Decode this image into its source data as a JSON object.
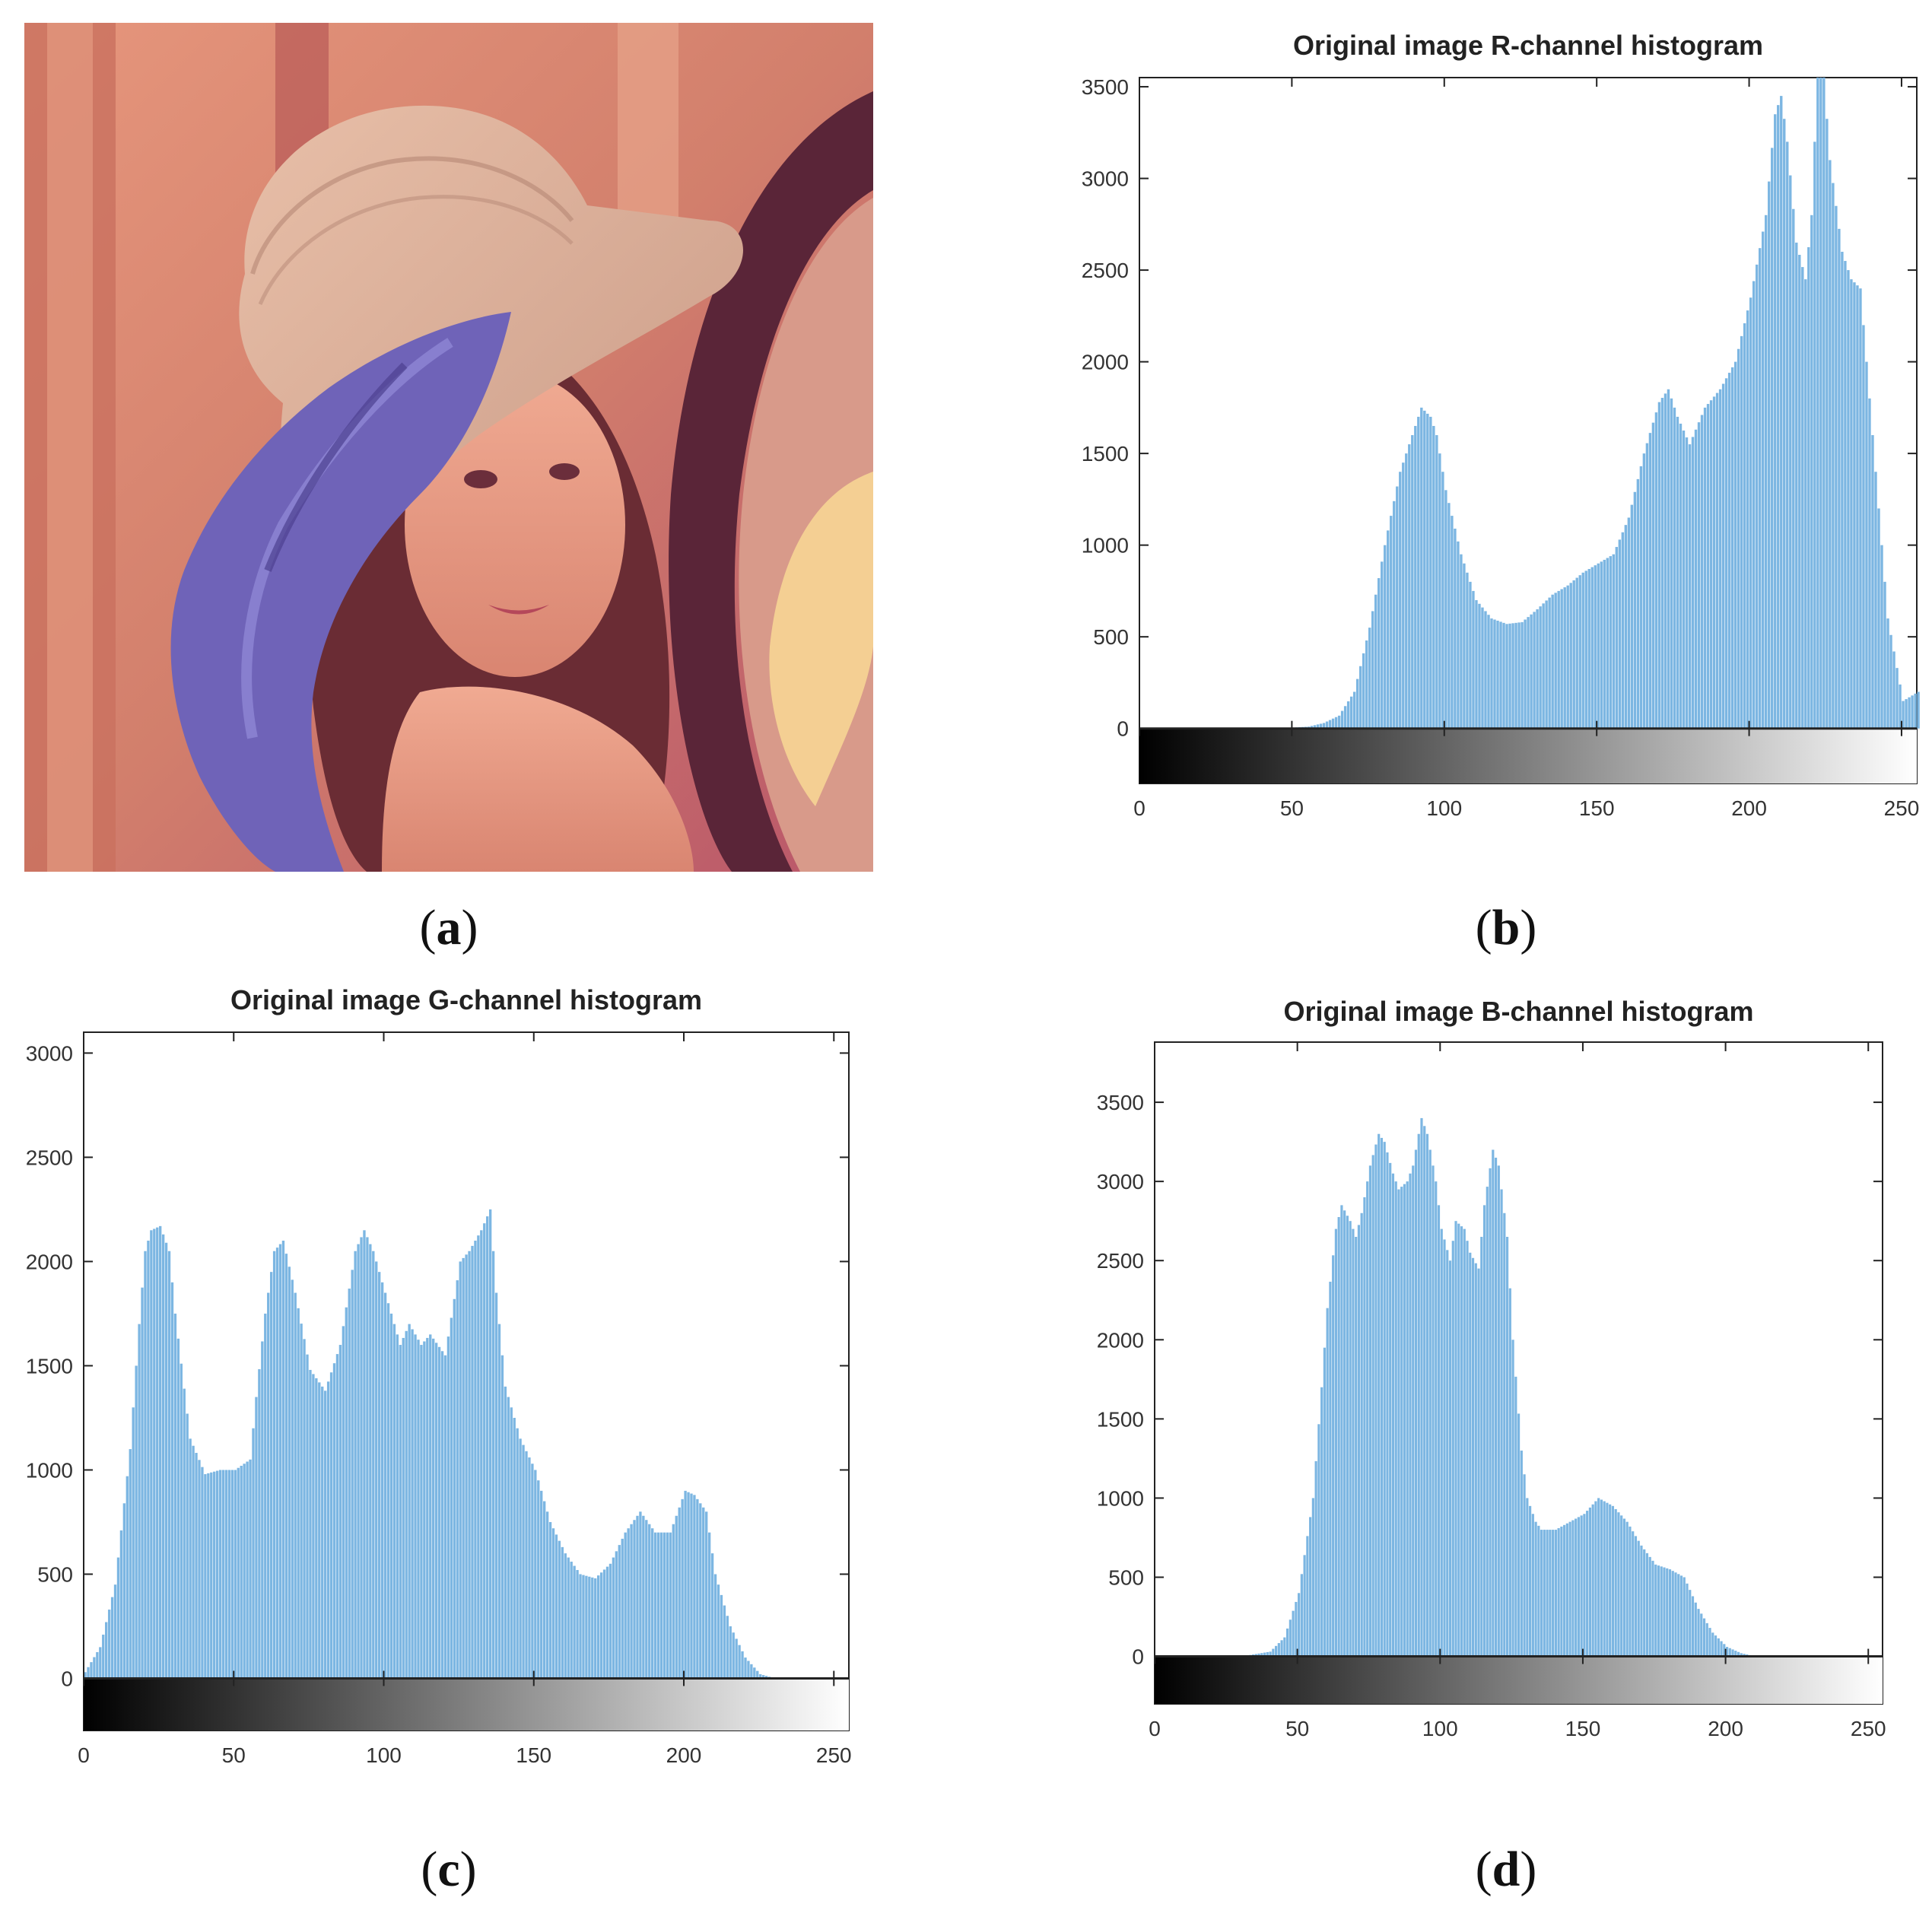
{
  "panels": {
    "a": {
      "label_open": "(",
      "label_letter": "a",
      "label_close": ")"
    },
    "b": {
      "label_open": "(",
      "label_letter": "b",
      "label_close": ")"
    },
    "c": {
      "label_open": "(",
      "label_letter": "c",
      "label_close": ")"
    },
    "d": {
      "label_open": "(",
      "label_letter": "d",
      "label_close": ")"
    }
  },
  "colors": {
    "bar": "#7cb6e2",
    "bar_edge": "#5a9ccf",
    "axis": "#222222",
    "photo_bg": "#d98a75"
  },
  "chart_data": [
    {
      "type": "bar",
      "title": "Original image R-channel histogram",
      "xlabel": "",
      "ylabel": "",
      "xlim": [
        0,
        255
      ],
      "ylim": [
        -300,
        3550
      ],
      "xticks": [
        0,
        50,
        100,
        150,
        200,
        250
      ],
      "yticks": [
        0,
        500,
        1000,
        1500,
        2000,
        2500,
        3000,
        3500
      ],
      "grayscale_colorbar": true,
      "x": [
        0,
        40,
        50,
        55,
        60,
        65,
        70,
        75,
        80,
        85,
        90,
        92,
        95,
        97,
        100,
        105,
        110,
        115,
        120,
        125,
        130,
        135,
        140,
        145,
        150,
        155,
        160,
        165,
        170,
        173,
        176,
        180,
        185,
        190,
        195,
        200,
        205,
        208,
        210,
        212,
        215,
        218,
        220,
        222,
        224,
        226,
        230,
        233,
        236,
        240,
        245,
        250,
        255
      ],
      "values": [
        0,
        0,
        5,
        10,
        30,
        70,
        200,
        550,
        1000,
        1400,
        1650,
        1750,
        1700,
        1600,
        1300,
        950,
        700,
        600,
        570,
        580,
        650,
        730,
        780,
        850,
        900,
        950,
        1150,
        1500,
        1780,
        1850,
        1700,
        1550,
        1750,
        1850,
        2000,
        2350,
        2800,
        3350,
        3450,
        3200,
        2650,
        2450,
        2800,
        3600,
        3550,
        3100,
        2600,
        2450,
        2400,
        1600,
        600,
        150,
        200
      ]
    },
    {
      "type": "bar",
      "title": "Original image G-channel histogram",
      "xlabel": "",
      "ylabel": "",
      "xlim": [
        0,
        255
      ],
      "ylim": [
        -250,
        3100
      ],
      "xticks": [
        0,
        50,
        100,
        150,
        200,
        250
      ],
      "yticks": [
        0,
        500,
        1000,
        1500,
        2000,
        2500,
        3000
      ],
      "grayscale_colorbar": true,
      "x": [
        0,
        5,
        10,
        15,
        18,
        20,
        22,
        25,
        28,
        30,
        35,
        40,
        45,
        50,
        55,
        57,
        60,
        63,
        66,
        70,
        75,
        80,
        85,
        90,
        93,
        96,
        100,
        105,
        108,
        112,
        115,
        120,
        125,
        128,
        132,
        135,
        137,
        140,
        145,
        150,
        155,
        160,
        165,
        170,
        175,
        180,
        185,
        190,
        195,
        200,
        203,
        207,
        210,
        215,
        220,
        225,
        230,
        255
      ],
      "values": [
        30,
        150,
        450,
        1100,
        1700,
        2050,
        2150,
        2170,
        2050,
        1750,
        1150,
        980,
        1000,
        1000,
        1050,
        1350,
        1750,
        2050,
        2100,
        1850,
        1480,
        1380,
        1600,
        2050,
        2150,
        2050,
        1850,
        1600,
        1700,
        1600,
        1650,
        1550,
        2000,
        2050,
        2150,
        2250,
        1850,
        1400,
        1150,
        1000,
        750,
        600,
        500,
        480,
        550,
        700,
        800,
        700,
        700,
        900,
        880,
        800,
        500,
        250,
        100,
        20,
        0,
        0
      ]
    },
    {
      "type": "bar",
      "title": "Original image B-channel histogram",
      "xlabel": "",
      "ylabel": "",
      "xlim": [
        0,
        255
      ],
      "ylim": [
        -300,
        3880
      ],
      "xticks": [
        0,
        50,
        100,
        150,
        200,
        250
      ],
      "yticks": [
        0,
        500,
        1000,
        1500,
        2000,
        2500,
        3000,
        3500
      ],
      "grayscale_colorbar": true,
      "x": [
        0,
        30,
        40,
        45,
        50,
        55,
        58,
        60,
        63,
        65,
        68,
        70,
        72,
        75,
        78,
        80,
        83,
        85,
        88,
        90,
        93,
        95,
        98,
        100,
        103,
        105,
        108,
        110,
        113,
        115,
        118,
        120,
        123,
        125,
        128,
        130,
        133,
        135,
        140,
        145,
        150,
        155,
        160,
        165,
        170,
        175,
        180,
        185,
        190,
        195,
        200,
        205,
        210,
        255
      ],
      "values": [
        0,
        0,
        30,
        120,
        400,
        1000,
        1700,
        2200,
        2700,
        2850,
        2750,
        2650,
        2800,
        3100,
        3300,
        3250,
        3050,
        2950,
        3000,
        3100,
        3400,
        3300,
        3000,
        2700,
        2500,
        2750,
        2700,
        2550,
        2450,
        2850,
        3200,
        3100,
        2650,
        2000,
        1300,
        1000,
        850,
        800,
        800,
        850,
        900,
        1000,
        950,
        850,
        700,
        580,
        550,
        500,
        300,
        150,
        60,
        20,
        0,
        0
      ]
    }
  ]
}
